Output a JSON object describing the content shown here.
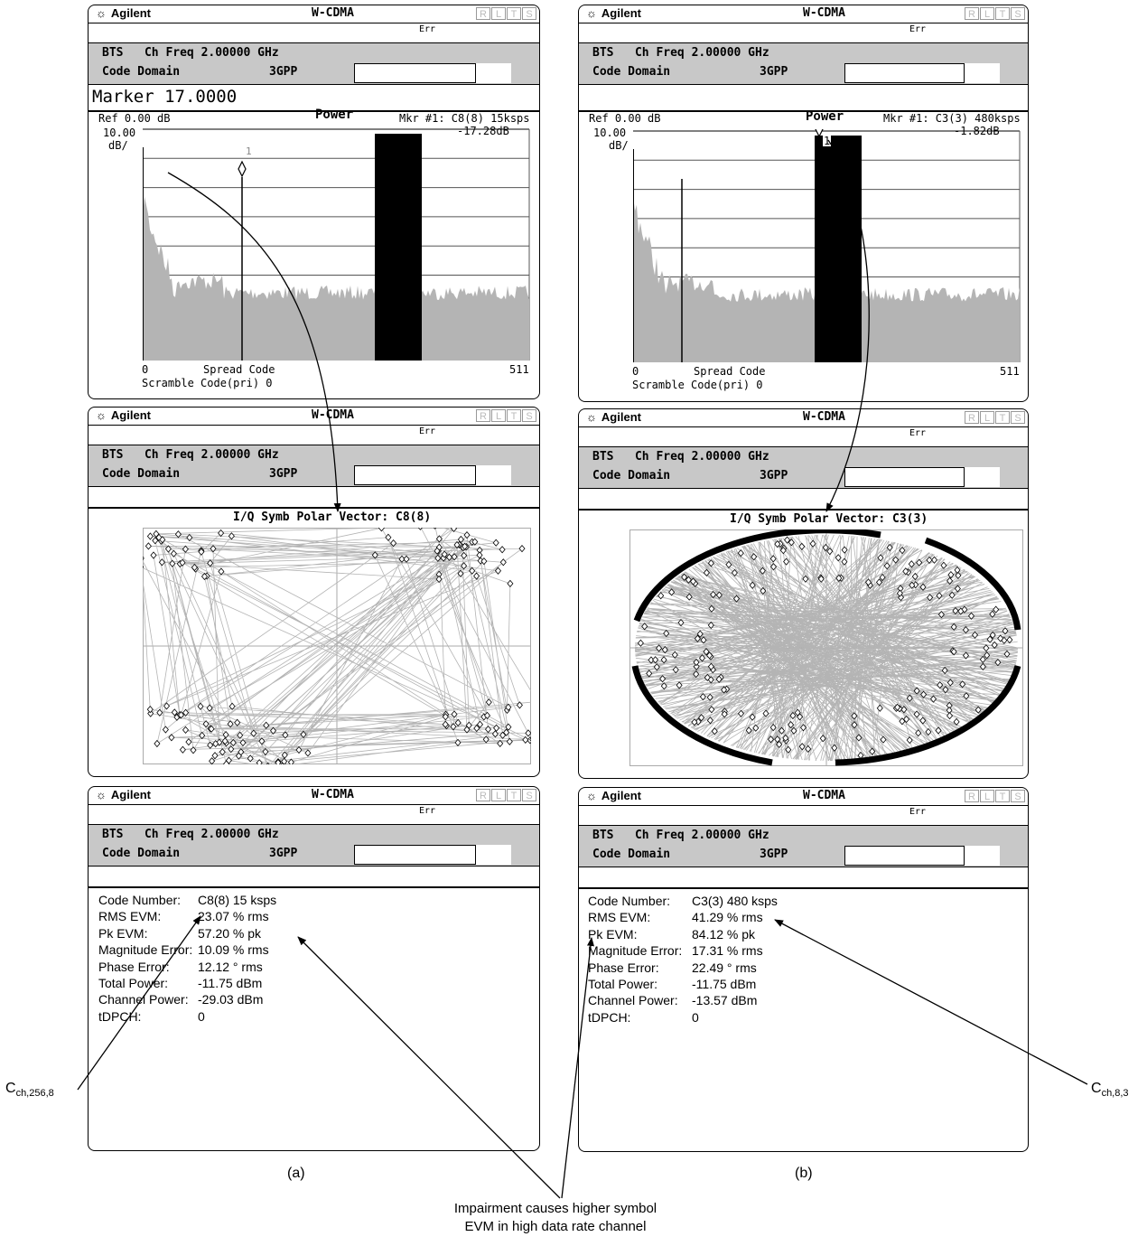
{
  "instrument": {
    "logo": "Agilent",
    "logo_icon": "sun-star-icon",
    "mode": "W-CDMA",
    "rlts": [
      "R",
      "L",
      "T",
      "S"
    ],
    "err": "Err",
    "header_line1": "BTS   Ch Freq 2.00000 GHz",
    "header_line2": "Code Domain",
    "standard": "3GPP"
  },
  "panel_a": {
    "marker_text": "Marker  17.0000",
    "power": {
      "ref": "Ref 0.00 dB",
      "scale_top": "10.00",
      "scale_bottom": "dB/",
      "title": "Power",
      "mkr_label": "Mkr #1: C8(8) 15ksps",
      "mkr_value": "-17.28dB",
      "marker_num": "1",
      "x_start": "0",
      "x_label": "Spread Code",
      "x_end": "511",
      "scramble": "Scramble Code(pri) 0"
    },
    "iq_title": "I/Q Symb Polar Vector: C8(8)",
    "metrics": [
      {
        "label": "Code Number:",
        "value": "C8(8) 15 ksps"
      },
      {
        "label": "RMS EVM:",
        "value": "23.07 % rms"
      },
      {
        "label": "Pk EVM:",
        "value": "57.20 % pk"
      },
      {
        "label": "Magnitude Error:",
        "value": "10.09 % rms"
      },
      {
        "label": "Phase Error:",
        "value": "12.12 ° rms"
      },
      {
        "label": "Total Power:",
        "value": "-11.75 dBm"
      },
      {
        "label": "Channel Power:",
        "value": "-29.03 dBm"
      },
      {
        "label": "tDPCH:",
        "value": "0"
      }
    ],
    "caption": "(a)",
    "channel_label_main": "C",
    "channel_label_sub": "ch,256,8"
  },
  "panel_b": {
    "marker_text": "",
    "power": {
      "ref": "Ref 0.00 dB",
      "scale_top": "10.00",
      "scale_bottom": "dB/",
      "title": "Power",
      "mkr_label": "Mkr #1: C3(3) 480ksps",
      "mkr_value": "-1.82dB",
      "marker_num": "1",
      "x_start": "0",
      "x_label": "Spread Code",
      "x_end": "511",
      "scramble": "Scramble Code(pri) 0"
    },
    "iq_title": "I/Q Symb Polar Vector: C3(3)",
    "metrics": [
      {
        "label": "Code Number:",
        "value": "C3(3) 480 ksps"
      },
      {
        "label": "RMS EVM:",
        "value": "41.29 % rms"
      },
      {
        "label": "Pk EVM:",
        "value": "84.12 % pk"
      },
      {
        "label": "Magnitude Error:",
        "value": "17.31 % rms"
      },
      {
        "label": "Phase Error:",
        "value": "22.49 ° rms"
      },
      {
        "label": "Total Power:",
        "value": "-11.75 dBm"
      },
      {
        "label": "Channel Power:",
        "value": "-13.57 dBm"
      },
      {
        "label": "tDPCH:",
        "value": "0"
      }
    ],
    "caption": "(b)",
    "channel_label_main": "C",
    "channel_label_sub": "ch,8,3"
  },
  "bottom_callout": {
    "line1": "Impairment causes higher symbol",
    "line2": "EVM in high data rate channel"
  },
  "colors": {
    "trace_gray": "#b4b4b4",
    "bar_black": "#000000",
    "header_gray": "#c8c8c8"
  }
}
